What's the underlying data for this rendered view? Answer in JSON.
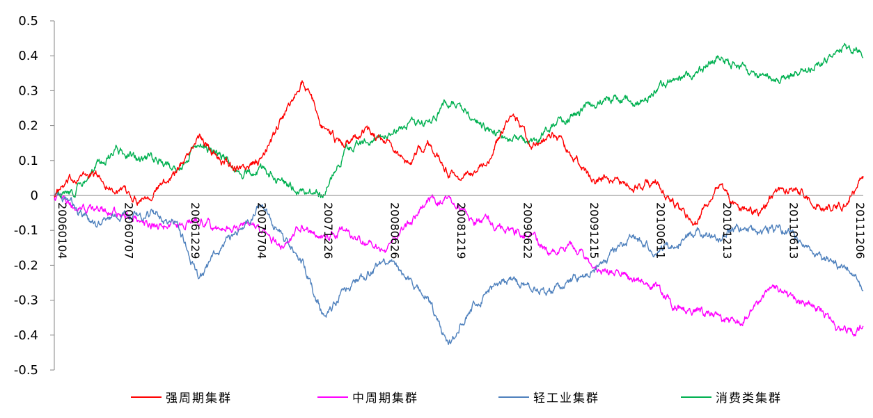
{
  "chart_data": {
    "type": "line",
    "title": "",
    "xlabel": "",
    "ylabel": "",
    "ylim": [
      -0.5,
      0.5
    ],
    "y_ticks": [
      "0.5",
      "0.4",
      "0.3",
      "0.2",
      "0.1",
      "0",
      "-0.1",
      "-0.2",
      "-0.3",
      "-0.4",
      "-0.5"
    ],
    "y_tick_values": [
      0.5,
      0.4,
      0.3,
      0.2,
      0.1,
      0,
      -0.1,
      -0.2,
      -0.3,
      -0.4,
      -0.5
    ],
    "x_ticks": [
      "20060104",
      "20060707",
      "20061229",
      "20070704",
      "20071226",
      "20080626",
      "20081219",
      "20090622",
      "20091215",
      "20100611",
      "20101213",
      "20110613",
      "20111206"
    ],
    "grid": false,
    "legend_position": "bottom",
    "series": [
      {
        "name": "强周期集群",
        "color": "#ff0000",
        "values": [
          0,
          0.05,
          0.06,
          0.01,
          -0.01,
          0.02,
          0.08,
          0.17,
          0.1,
          0.07,
          0.1,
          0.22,
          0.33,
          0.19,
          0.14,
          0.19,
          0.16,
          0.09,
          0.15,
          0.07,
          0.05,
          0.11,
          0.24,
          0.15,
          0.17,
          0.12,
          0.04,
          0.05,
          0.03,
          0.04,
          -0.03,
          -0.08,
          0.04,
          -0.04,
          -0.05,
          0.02,
          0.01,
          -0.04,
          -0.03,
          0.05
        ]
      },
      {
        "name": "中周期集群",
        "color": "#ff00ff",
        "values": [
          0,
          -0.03,
          -0.04,
          -0.05,
          -0.06,
          -0.09,
          -0.08,
          -0.07,
          -0.1,
          -0.08,
          -0.11,
          -0.14,
          -0.09,
          -0.12,
          -0.1,
          -0.13,
          -0.16,
          -0.09,
          -0.02,
          -0.01,
          -0.07,
          -0.08,
          -0.1,
          -0.12,
          -0.17,
          -0.14,
          -0.21,
          -0.22,
          -0.25,
          -0.26,
          -0.32,
          -0.33,
          -0.35,
          -0.37,
          -0.3,
          -0.27,
          -0.3,
          -0.33,
          -0.39,
          -0.38
        ]
      },
      {
        "name": "轻工业集群",
        "color": "#4f81bd",
        "values": [
          0,
          -0.03,
          -0.09,
          -0.05,
          -0.06,
          -0.05,
          -0.09,
          -0.24,
          -0.15,
          -0.1,
          -0.03,
          -0.12,
          -0.2,
          -0.35,
          -0.27,
          -0.23,
          -0.18,
          -0.24,
          -0.29,
          -0.43,
          -0.33,
          -0.27,
          -0.24,
          -0.26,
          -0.28,
          -0.24,
          -0.22,
          -0.16,
          -0.12,
          -0.16,
          -0.14,
          -0.1,
          -0.12,
          -0.09,
          -0.11,
          -0.09,
          -0.14,
          -0.18,
          -0.2,
          -0.27
        ]
      },
      {
        "name": "消费类集群",
        "color": "#00b050",
        "values": [
          0,
          0.01,
          0.08,
          0.13,
          0.11,
          0.1,
          0.08,
          0.14,
          0.12,
          0.06,
          0.07,
          0.04,
          0.01,
          0.0,
          0.13,
          0.15,
          0.17,
          0.2,
          0.21,
          0.27,
          0.23,
          0.19,
          0.16,
          0.15,
          0.2,
          0.23,
          0.26,
          0.28,
          0.26,
          0.3,
          0.33,
          0.35,
          0.39,
          0.37,
          0.34,
          0.33,
          0.36,
          0.38,
          0.42,
          0.41
        ]
      }
    ]
  }
}
